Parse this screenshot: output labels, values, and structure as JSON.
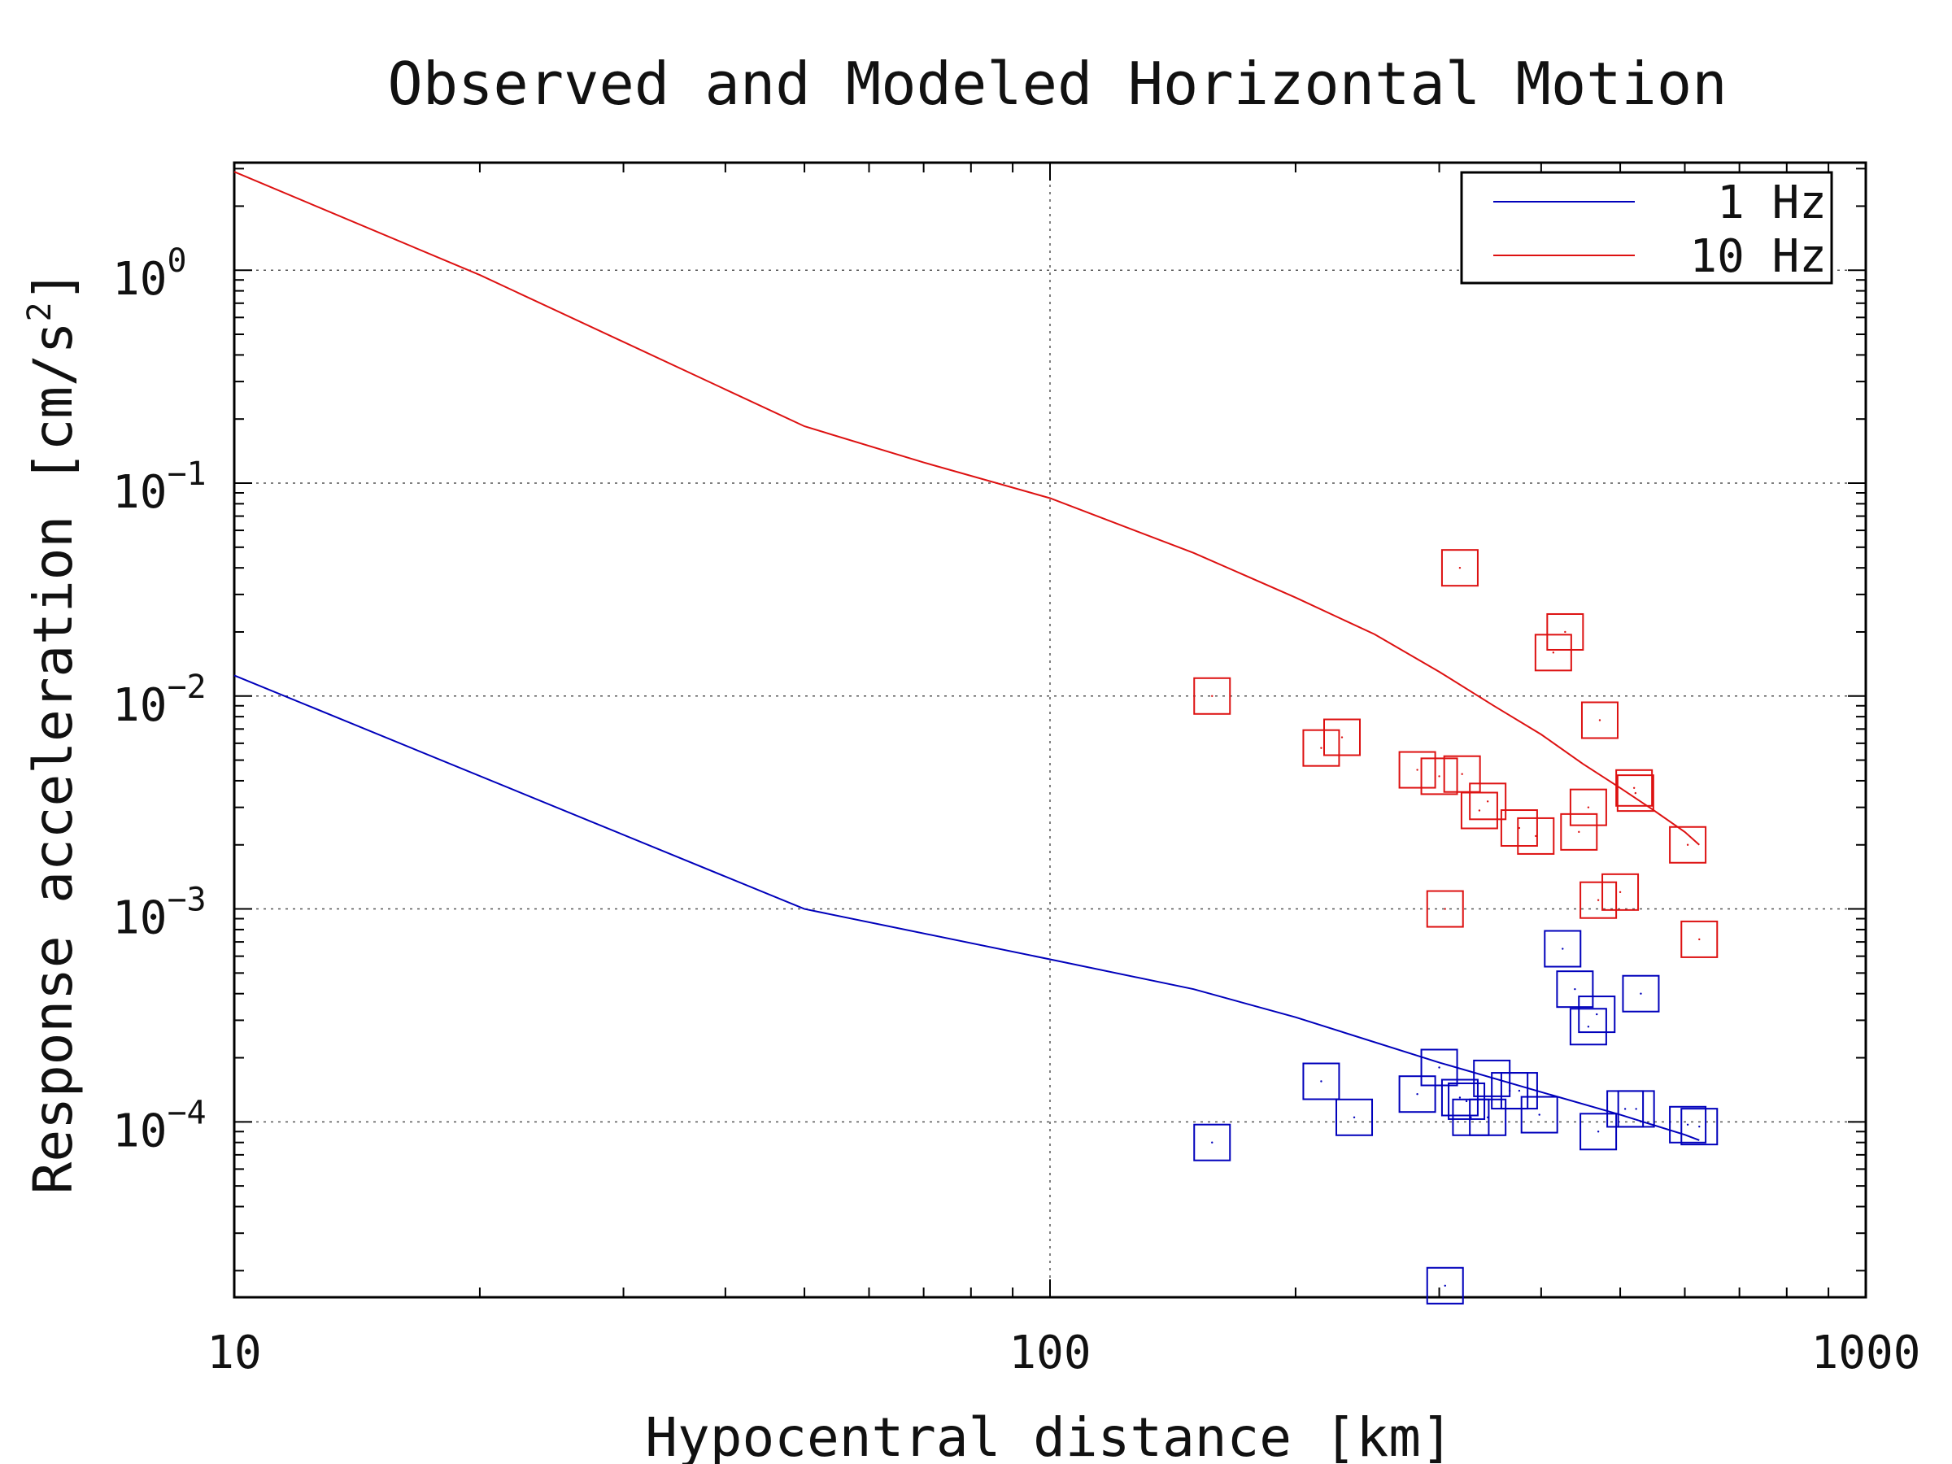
{
  "colors": {
    "series_1hz": "#0000bb",
    "series_10hz": "#dd1111",
    "axis": "#000000",
    "grid": "#555555"
  },
  "chart_data": {
    "type": "scatter",
    "title": "Observed and Modeled Horizontal Motion",
    "xlabel": "Hypocentral distance [km]",
    "ylabel": "Response acceleration [cm/s²]",
    "ylabel_base": "Response acceleration [cm/s",
    "ylabel_sup": "2",
    "ylabel_close": "]",
    "x_scale": "log",
    "y_scale": "log",
    "xlim": [
      10,
      1000
    ],
    "ylim": [
      1.5e-05,
      3.2
    ],
    "x_ticks": [
      {
        "value": 10,
        "label": "10"
      },
      {
        "value": 100,
        "label": "100"
      },
      {
        "value": 1000,
        "label": "1000"
      }
    ],
    "y_ticks": [
      {
        "value": 1,
        "base": "10",
        "exp": "0"
      },
      {
        "value": 0.1,
        "base": "10",
        "exp": "−1"
      },
      {
        "value": 0.01,
        "base": "10",
        "exp": "−2"
      },
      {
        "value": 0.001,
        "base": "10",
        "exp": "−3"
      },
      {
        "value": 0.0001,
        "base": "10",
        "exp": "−4"
      }
    ],
    "grid": true,
    "legend": {
      "placement": "top-right",
      "entries": [
        {
          "label": "1 Hz",
          "series": "1hz"
        },
        {
          "label": "10 Hz",
          "series": "10hz"
        }
      ]
    },
    "model_lines": [
      {
        "name": "1 Hz",
        "series": "1hz",
        "x": [
          10,
          50,
          100,
          150,
          200,
          300,
          400,
          500,
          600,
          625
        ],
        "y": [
          0.0125,
          0.001,
          0.00058,
          0.00042,
          0.00031,
          0.00019,
          0.000138,
          0.000108,
          8.7e-05,
          8.2e-05
        ]
      },
      {
        "name": "10 Hz",
        "series": "10hz",
        "x": [
          10,
          20,
          50,
          70,
          100,
          150,
          200,
          250,
          300,
          350,
          400,
          450,
          500,
          550,
          600,
          625
        ],
        "y": [
          2.9,
          0.95,
          0.185,
          0.125,
          0.085,
          0.047,
          0.029,
          0.0195,
          0.013,
          0.009,
          0.0066,
          0.0048,
          0.0037,
          0.0029,
          0.0023,
          0.002
        ]
      }
    ],
    "observed": [
      {
        "series": "1hz",
        "x": [
          158,
          215,
          236,
          282,
          300,
          305,
          318,
          324,
          328,
          344,
          348,
          366,
          376,
          398,
          425,
          440,
          457,
          468,
          470,
          507,
          523,
          530,
          605,
          625
        ],
        "y": [
          8e-05,
          0.000155,
          0.000105,
          0.000135,
          0.00018,
          1.7e-05,
          0.00013,
          0.000125,
          0.000105,
          0.000105,
          0.00016,
          0.00014,
          0.00014,
          0.000108,
          0.00065,
          0.00042,
          0.00028,
          0.00032,
          9e-05,
          0.000115,
          0.000115,
          0.0004,
          9.7e-05,
          9.5e-05
        ]
      },
      {
        "series": "10hz",
        "x": [
          158,
          215,
          228,
          282,
          300,
          305,
          318,
          320,
          336,
          344,
          376,
          394,
          414,
          428,
          445,
          457,
          470,
          472,
          500,
          520,
          522,
          605,
          625
        ],
        "y": [
          0.01,
          0.0057,
          0.0064,
          0.0045,
          0.0042,
          0.001,
          0.04,
          0.0043,
          0.0029,
          0.0032,
          0.0024,
          0.0022,
          0.016,
          0.02,
          0.0023,
          0.003,
          0.0011,
          0.0077,
          0.0012,
          0.0037,
          0.0035,
          0.002,
          0.00072
        ]
      }
    ]
  }
}
